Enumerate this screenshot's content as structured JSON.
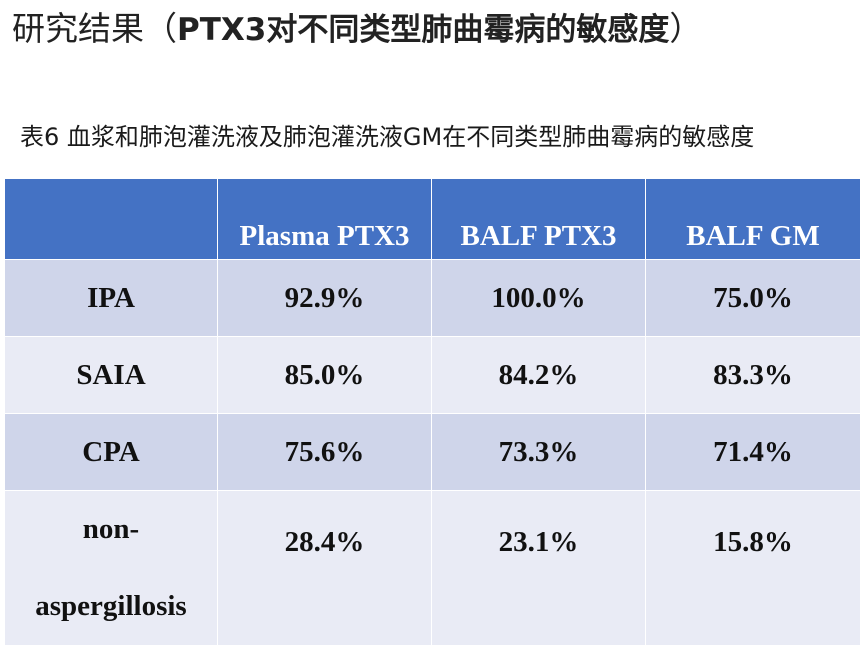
{
  "slide": {
    "title_prefix": "研究结果（",
    "title_bold": "PTX3对不同类型肺曲霉病的敏感度",
    "title_suffix": "）",
    "table_caption": "表6 血浆和肺泡灌洗液及肺泡灌洗液GM在不同类型肺曲霉病的敏感度"
  },
  "table": {
    "header": [
      "",
      "Plasma PTX3",
      "BALF PTX3",
      "BALF GM"
    ],
    "rows": [
      [
        "IPA",
        "92.9%",
        "100.0%",
        "75.0%"
      ],
      [
        "SAIA",
        "85.0%",
        "84.2%",
        "83.3%"
      ],
      [
        "CPA",
        "75.6%",
        "73.3%",
        "71.4%"
      ],
      [
        "non-aspergillosis",
        "28.4%",
        "23.1%",
        "15.8%"
      ]
    ],
    "last_row_head_lines": [
      "non-",
      "aspergillosis"
    ]
  },
  "colors": {
    "header_bg": "#4472c4",
    "band_bg": "#cfd5ea",
    "plain_bg": "#e9ebf5"
  }
}
